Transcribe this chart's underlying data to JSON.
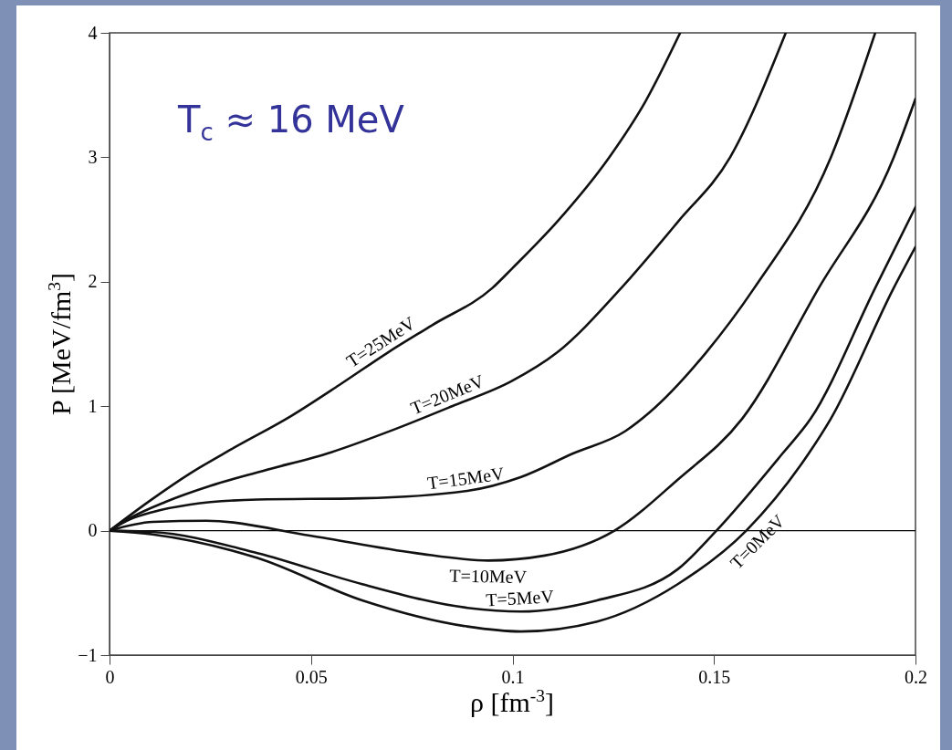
{
  "chart_data": {
    "type": "line",
    "xlabel": "ρ [fm$^{-3}$]",
    "ylabel": "P [MeV/fm$^{3}$]",
    "annotations": [
      "T$_{c}$ ≈ 16 MeV"
    ],
    "xlim": [
      0,
      0.2
    ],
    "ylim": [
      -1,
      4
    ],
    "xticks": [
      0,
      0.05,
      0.1,
      0.15,
      0.2
    ],
    "yticks": [
      -1,
      0,
      1,
      2,
      3,
      4
    ],
    "ref_lines": [
      {
        "axis": "y",
        "value": 0,
        "color": "#000000"
      }
    ],
    "series": [
      {
        "name": "T=25MeV",
        "color": "#111111",
        "x": [
          0,
          0.01,
          0.02,
          0.03,
          0.045,
          0.057,
          0.069,
          0.08,
          0.095,
          0.1,
          0.111,
          0.124,
          0.133,
          0.1416
        ],
        "values": [
          0,
          0.24,
          0.46,
          0.65,
          0.92,
          1.17,
          1.43,
          1.65,
          1.95,
          2.11,
          2.48,
          3.0,
          3.45,
          4
        ]
      },
      {
        "name": "T=20MeV",
        "color": "#111111",
        "x": [
          0,
          0.005,
          0.0138,
          0.025,
          0.038,
          0.055,
          0.0704,
          0.085,
          0.0997,
          0.111,
          0.127,
          0.141,
          0.154,
          0.1678
        ],
        "values": [
          0,
          0.1,
          0.23,
          0.36,
          0.48,
          0.63,
          0.81,
          1.0,
          1.2,
          1.43,
          1.95,
          2.48,
          3.0,
          4
        ]
      },
      {
        "name": "T=15MeV",
        "color": "#111111",
        "x": [
          0,
          0.005,
          0.0107,
          0.02,
          0.0367,
          0.0627,
          0.0888,
          0.102,
          0.115,
          0.128,
          0.134,
          0.148,
          0.16,
          0.179,
          0.19
        ],
        "values": [
          0,
          0.09,
          0.15,
          0.21,
          0.25,
          0.26,
          0.32,
          0.43,
          0.62,
          0.8,
          0.95,
          1.43,
          1.95,
          3.0,
          4
        ]
      },
      {
        "name": "T=10MeV",
        "color": "#111111",
        "x": [
          0,
          0.0107,
          0.024,
          0.0497,
          0.0759,
          0.094,
          0.108,
          0.1253,
          0.141,
          0.157,
          0.176,
          0.1946,
          0.2
        ],
        "values": [
          0,
          0.07,
          0.08,
          -0.04,
          -0.18,
          -0.24,
          -0.2,
          0,
          0.41,
          0.9,
          1.95,
          3.0,
          3.47
        ]
      },
      {
        "name": "T=5MeV",
        "color": "#111111",
        "x": [
          0,
          0.0107,
          0.0367,
          0.0627,
          0.0888,
          0.102,
          0.121,
          0.141,
          0.1506,
          0.167,
          0.174,
          0.19,
          0.2
        ],
        "values": [
          0,
          -0.01,
          -0.18,
          -0.43,
          -0.62,
          -0.65,
          -0.56,
          -0.31,
          0,
          0.62,
          0.9,
          1.95,
          2.6
        ]
      },
      {
        "name": "T=0MeV",
        "color": "#111111",
        "x": [
          0,
          0.0107,
          0.0367,
          0.0627,
          0.0888,
          0.102,
          0.121,
          0.141,
          0.158,
          0.1735,
          0.179,
          0.1946,
          0.2
        ],
        "values": [
          0,
          -0.03,
          -0.22,
          -0.56,
          -0.77,
          -0.81,
          -0.73,
          -0.43,
          0,
          0.62,
          0.9,
          1.95,
          2.28
        ]
      }
    ]
  }
}
